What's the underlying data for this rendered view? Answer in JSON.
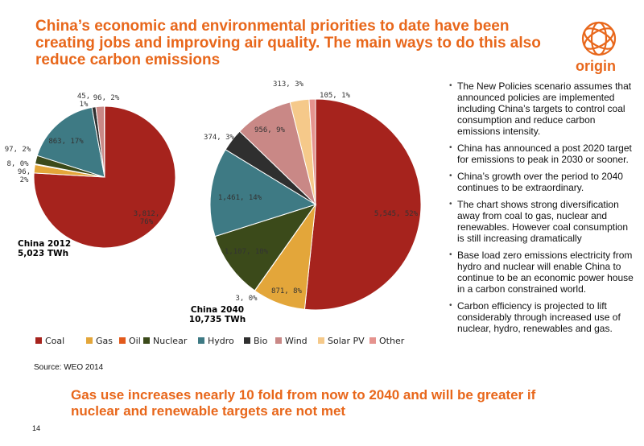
{
  "title": "China’s economic and environmental priorities to date have been creating jobs and improving air quality. The main ways to do this also reduce carbon emissions",
  "logo": {
    "text": "origin",
    "icon": "origin-ring-logo",
    "color": "#e8671b"
  },
  "chart_data": [
    {
      "type": "pie",
      "title": "China 2012\n5,023 TWh",
      "categories": [
        "Coal",
        "Gas",
        "Oil",
        "Nuclear",
        "Hydro",
        "Bio",
        "Wind",
        "Solar PV",
        "Other"
      ],
      "values": [
        3812,
        96,
        8,
        97,
        863,
        45,
        96,
        2,
        2
      ],
      "labels": [
        "3,812,\n76%",
        "96,\n2%",
        "8, 0%",
        "97, 2%",
        "863, 17%",
        "45,\n1%",
        "96, 2%",
        "",
        ""
      ]
    },
    {
      "type": "pie",
      "title": "China 2040\n10,735 TWh",
      "categories": [
        "Coal",
        "Gas",
        "Oil",
        "Nuclear",
        "Hydro",
        "Bio",
        "Wind",
        "Solar PV",
        "Other"
      ],
      "values": [
        5545,
        871,
        3,
        1107,
        1461,
        374,
        956,
        313,
        105
      ],
      "labels": [
        "5,545, 52%",
        "871, 8%",
        "3, 0%",
        "1,107, 10%",
        "1,461, 14%",
        "374, 3%",
        "956, 9%",
        "313, 3%",
        "105, 1%"
      ]
    }
  ],
  "legend": [
    {
      "label": "Coal",
      "color": "#a6231d"
    },
    {
      "label": "Gas",
      "color": "#e3a63a"
    },
    {
      "label": "Oil",
      "color": "#e25a1c"
    },
    {
      "label": "Nuclear",
      "color": "#3b4a1a"
    },
    {
      "label": "Hydro",
      "color": "#3e7a84"
    },
    {
      "label": "Bio",
      "color": "#2f2f2f"
    },
    {
      "label": "Wind",
      "color": "#c98886"
    },
    {
      "label": "Solar PV",
      "color": "#f5c98a"
    },
    {
      "label": "Other",
      "color": "#e5938e"
    }
  ],
  "bullets": [
    "The New Policies scenario assumes that announced policies are implemented including China’s targets to control coal consumption and reduce carbon emissions intensity.",
    "China has announced a post 2020 target for emissions to peak in 2030 or sooner.",
    "China’s growth over the period to 2040 continues to be extraordinary.",
    "The chart shows strong diversification away from coal to gas, nuclear and renewables. However coal consumption is still increasing dramatically",
    "Base load zero emissions electricity from hydro and nuclear will enable China to continue to be an economic power house in a carbon constrained world.",
    "Carbon efficiency is projected to lift considerably through increased use of nuclear, hydro, renewables and gas."
  ],
  "bullet_marker": "•",
  "source": "Source: WEO 2014",
  "bottom_text": "Gas use increases nearly 10 fold from now to 2040 and will be greater if nuclear and renewable targets are not met",
  "page_number": "14"
}
